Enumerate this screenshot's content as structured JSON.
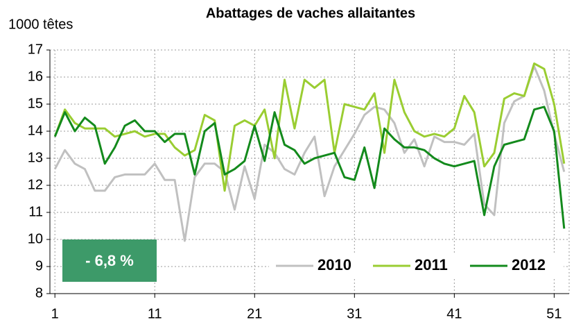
{
  "chart_data": {
    "type": "line",
    "title": "Abattages de vaches allaitantes",
    "y_label": "1000 têtes",
    "annotation": "- 6,8 %",
    "annotation_color": "#3d9a69",
    "x": [
      1,
      2,
      3,
      4,
      5,
      6,
      7,
      8,
      9,
      10,
      11,
      12,
      13,
      14,
      15,
      16,
      17,
      18,
      19,
      20,
      21,
      22,
      23,
      24,
      25,
      26,
      27,
      28,
      29,
      30,
      31,
      32,
      33,
      34,
      35,
      36,
      37,
      38,
      39,
      40,
      41,
      42,
      43,
      44,
      45,
      46,
      47,
      48,
      49,
      50,
      51,
      52
    ],
    "series": [
      {
        "name": "2010",
        "color": "#c0c0c0",
        "values": [
          12.6,
          13.3,
          12.8,
          12.6,
          11.8,
          11.8,
          12.3,
          12.4,
          12.4,
          12.4,
          12.8,
          12.2,
          12.2,
          9.95,
          12.3,
          12.8,
          12.8,
          12.5,
          11.1,
          12.7,
          11.5,
          13.5,
          13.2,
          12.6,
          12.4,
          13.2,
          13.8,
          11.6,
          12.7,
          13.3,
          13.9,
          14.6,
          14.9,
          14.8,
          14.3,
          13.2,
          13.7,
          12.7,
          13.8,
          13.6,
          13.6,
          13.5,
          13.9,
          11.3,
          10.9,
          14.3,
          15.1,
          15.3,
          16.4,
          15.5,
          13.9,
          12.5
        ]
      },
      {
        "name": "2011",
        "color": "#9acd32",
        "values": [
          13.8,
          14.8,
          14.3,
          14.1,
          14.1,
          14.1,
          13.8,
          13.9,
          14.0,
          13.8,
          13.9,
          13.9,
          13.4,
          13.1,
          13.3,
          14.6,
          14.4,
          11.8,
          14.2,
          14.4,
          14.2,
          14.8,
          13.0,
          15.9,
          14.1,
          15.9,
          15.6,
          15.9,
          13.2,
          15.0,
          14.9,
          14.8,
          15.4,
          13.2,
          15.9,
          14.7,
          14.0,
          13.8,
          13.9,
          13.8,
          14.1,
          15.3,
          14.7,
          12.7,
          13.2,
          15.2,
          15.4,
          15.3,
          16.5,
          16.3,
          15.0,
          12.8
        ]
      },
      {
        "name": "2012",
        "color": "#138a1c",
        "values": [
          13.8,
          14.7,
          14.0,
          14.5,
          14.2,
          12.8,
          13.4,
          14.2,
          14.4,
          14.0,
          14.0,
          13.6,
          13.9,
          13.9,
          12.4,
          14.0,
          14.3,
          12.4,
          12.6,
          12.9,
          14.2,
          12.9,
          14.7,
          13.5,
          13.3,
          12.8,
          13.0,
          13.1,
          13.2,
          12.3,
          12.2,
          13.4,
          11.9,
          14.1,
          13.7,
          13.4,
          13.4,
          13.3,
          13.0,
          12.8,
          12.7,
          12.8,
          12.9,
          10.9,
          12.7,
          13.5,
          13.6,
          13.7,
          14.8,
          14.9,
          14.0,
          10.4
        ]
      }
    ],
    "xlim": [
      0.5,
      52.5
    ],
    "xticks": [
      1,
      11,
      21,
      31,
      41,
      51
    ],
    "ylim": [
      8,
      17
    ],
    "yticks": [
      8,
      9,
      10,
      11,
      12,
      13,
      14,
      15,
      16,
      17
    ],
    "grid": true,
    "legend": "lower right"
  }
}
